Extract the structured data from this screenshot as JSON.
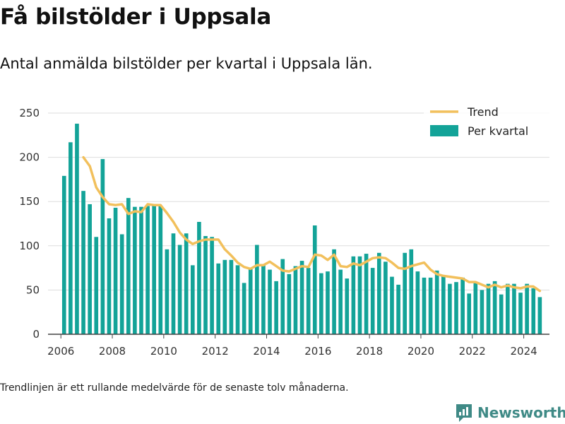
{
  "title": "Få bilstölder i Uppsala",
  "subtitle": "Antal anmälda bilstölder per kvartal i Uppsala län.",
  "footnote": "Trendlinjen är ett rullande medelvärde för de senaste tolv månaderna.",
  "brand": {
    "name": "Newsworthy",
    "icon": "newsworthy-logo-icon"
  },
  "colors": {
    "bars": "#13a398",
    "trend": "#f2c05c",
    "grid": "#dddddd",
    "brand": "#3f8a86"
  },
  "chart_data": {
    "type": "bar",
    "x_unit": "quarter",
    "ylim": [
      0,
      250
    ],
    "yticks": [
      0,
      50,
      100,
      150,
      200,
      250
    ],
    "xticks": [
      2006,
      2008,
      2010,
      2012,
      2014,
      2016,
      2018,
      2020,
      2022,
      2024
    ],
    "xlim": [
      "2005 Q3",
      "2025 Q1"
    ],
    "grid": true,
    "legend": {
      "placement": "top-right",
      "items": [
        "Trend",
        "Per kvartal"
      ]
    },
    "x": [
      "2006 Q1",
      "2006 Q2",
      "2006 Q3",
      "2006 Q4",
      "2007 Q1",
      "2007 Q2",
      "2007 Q3",
      "2007 Q4",
      "2008 Q1",
      "2008 Q2",
      "2008 Q3",
      "2008 Q4",
      "2009 Q1",
      "2009 Q2",
      "2009 Q3",
      "2009 Q4",
      "2010 Q1",
      "2010 Q2",
      "2010 Q3",
      "2010 Q4",
      "2011 Q1",
      "2011 Q2",
      "2011 Q3",
      "2011 Q4",
      "2012 Q1",
      "2012 Q2",
      "2012 Q3",
      "2012 Q4",
      "2013 Q1",
      "2013 Q2",
      "2013 Q3",
      "2013 Q4",
      "2014 Q1",
      "2014 Q2",
      "2014 Q3",
      "2014 Q4",
      "2015 Q1",
      "2015 Q2",
      "2015 Q3",
      "2015 Q4",
      "2016 Q1",
      "2016 Q2",
      "2016 Q3",
      "2016 Q4",
      "2017 Q1",
      "2017 Q2",
      "2017 Q3",
      "2017 Q4",
      "2018 Q1",
      "2018 Q2",
      "2018 Q3",
      "2018 Q4",
      "2019 Q1",
      "2019 Q2",
      "2019 Q3",
      "2019 Q4",
      "2020 Q1",
      "2020 Q2",
      "2020 Q3",
      "2020 Q4",
      "2021 Q1",
      "2021 Q2",
      "2021 Q3",
      "2021 Q4",
      "2022 Q1",
      "2022 Q2",
      "2022 Q3",
      "2022 Q4",
      "2023 Q1",
      "2023 Q2",
      "2023 Q3",
      "2023 Q4",
      "2024 Q1",
      "2024 Q2",
      "2024 Q3"
    ],
    "series": [
      {
        "name": "Per kvartal",
        "type": "bar",
        "values": [
          179,
          217,
          238,
          162,
          147,
          110,
          198,
          131,
          143,
          113,
          154,
          144,
          144,
          145,
          145,
          145,
          96,
          114,
          101,
          114,
          78,
          127,
          111,
          110,
          80,
          84,
          84,
          78,
          58,
          75,
          101,
          78,
          73,
          60,
          85,
          68,
          77,
          83,
          75,
          123,
          69,
          71,
          96,
          73,
          63,
          88,
          88,
          91,
          75,
          92,
          82,
          65,
          56,
          92,
          96,
          71,
          64,
          64,
          72,
          66,
          57,
          59,
          64,
          46,
          59,
          50,
          57,
          60,
          45,
          57,
          57,
          47,
          57,
          52,
          42
        ]
      },
      {
        "name": "Trend",
        "type": "line",
        "values": [
          null,
          null,
          null,
          200,
          190,
          166,
          155,
          147,
          146,
          147,
          136,
          139,
          138,
          147,
          146,
          146,
          137,
          127,
          115,
          107,
          102,
          105,
          107,
          107,
          107,
          96,
          89,
          81,
          76,
          74,
          78,
          78,
          82,
          77,
          72,
          71,
          74,
          77,
          76,
          90,
          89,
          84,
          90,
          77,
          76,
          80,
          78,
          82,
          86,
          87,
          86,
          81,
          75,
          74,
          77,
          79,
          81,
          73,
          68,
          66,
          65,
          64,
          63,
          59,
          59,
          56,
          53,
          56,
          53,
          55,
          53,
          52,
          54,
          54,
          49
        ]
      }
    ]
  }
}
